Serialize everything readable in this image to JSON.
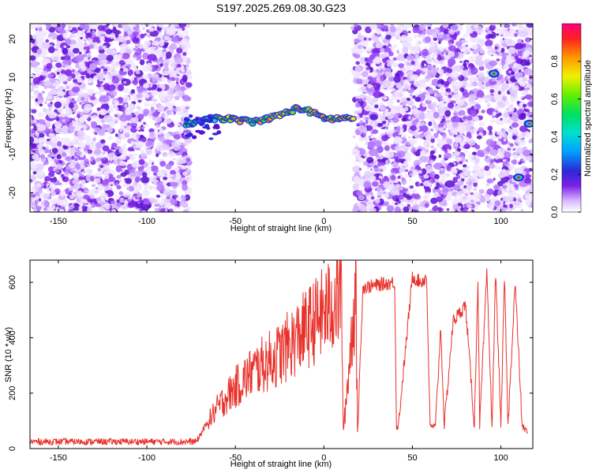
{
  "title": "S197.2025.269.08.30.G23",
  "chart_data": [
    {
      "type": "heatmap",
      "xlabel": "Height of straight line (km)",
      "ylabel": "Frequency (Hz)",
      "xlim": [
        -166,
        118
      ],
      "ylim": [
        -25,
        24
      ],
      "xticks": [
        -150,
        -100,
        -50,
        0,
        50,
        100
      ],
      "yticks": [
        -20,
        -10,
        0,
        10,
        20
      ],
      "x_tick_labels": [
        "-150",
        "-100",
        "-50",
        "0",
        "50",
        "100"
      ],
      "y_tick_labels": [
        "-20",
        "-10",
        "0",
        "10",
        "20"
      ],
      "colorbar": {
        "label": "Normalized spectral amplitude",
        "range": [
          0,
          1
        ],
        "ticks": [
          0.0,
          0.2,
          0.4,
          0.6,
          0.8
        ],
        "tick_labels": [
          "0.0",
          "0.2",
          "0.4",
          "0.6",
          "0.8"
        ]
      },
      "features": {
        "noise_regions_km": [
          [
            -166,
            -76
          ],
          [
            17,
            90
          ],
          [
            92,
            118
          ]
        ],
        "signal_trace": {
          "x": [
            -78,
            -70,
            -60,
            -50,
            -40,
            -30,
            -20,
            -15,
            -10,
            -5,
            0,
            5,
            10,
            17
          ],
          "y": [
            -2,
            -1.5,
            -0.5,
            -1,
            -1.5,
            -0.5,
            1,
            2,
            1.5,
            0.5,
            -0.5,
            -0.8,
            -0.6,
            -0.5
          ]
        },
        "hot_spots": [
          {
            "x": 96,
            "y": 11
          },
          {
            "x": 110,
            "y": -16
          },
          {
            "x": 116,
            "y": -2
          }
        ]
      }
    },
    {
      "type": "line",
      "xlabel": "Height of straight line (km)",
      "ylabel": "SNR (10 * v/v)",
      "xlim": [
        -166,
        118
      ],
      "ylim": [
        0,
        680
      ],
      "xticks": [
        -150,
        -100,
        -50,
        0,
        50,
        100
      ],
      "yticks": [
        0,
        200,
        400,
        600
      ],
      "x_tick_labels": [
        "-150",
        "-100",
        "-50",
        "0",
        "50",
        "100"
      ],
      "y_tick_labels": [
        "0",
        "200",
        "400",
        "600"
      ],
      "color": "#e8312a",
      "series": [
        {
          "name": "SNR",
          "x": [
            -166,
            -140,
            -120,
            -100,
            -80,
            -72,
            -68,
            -62,
            -56,
            -50,
            -45,
            -40,
            -35,
            -30,
            -25,
            -20,
            -15,
            -10,
            -5,
            0,
            5,
            10,
            11,
            18,
            19,
            22,
            30,
            40,
            41,
            42,
            50,
            55,
            58,
            60,
            63,
            66,
            68,
            73,
            78,
            80,
            85,
            87,
            88,
            92,
            95,
            97,
            100,
            102,
            104,
            108,
            112,
            115
          ],
          "y": [
            25,
            25,
            25,
            25,
            25,
            25,
            70,
            130,
            180,
            220,
            250,
            280,
            300,
            320,
            340,
            370,
            400,
            430,
            460,
            490,
            520,
            560,
            60,
            580,
            60,
            580,
            590,
            600,
            80,
            80,
            620,
            600,
            620,
            80,
            80,
            440,
            80,
            460,
            500,
            520,
            80,
            620,
            80,
            630,
            80,
            640,
            80,
            620,
            80,
            600,
            80,
            60
          ]
        }
      ]
    }
  ]
}
